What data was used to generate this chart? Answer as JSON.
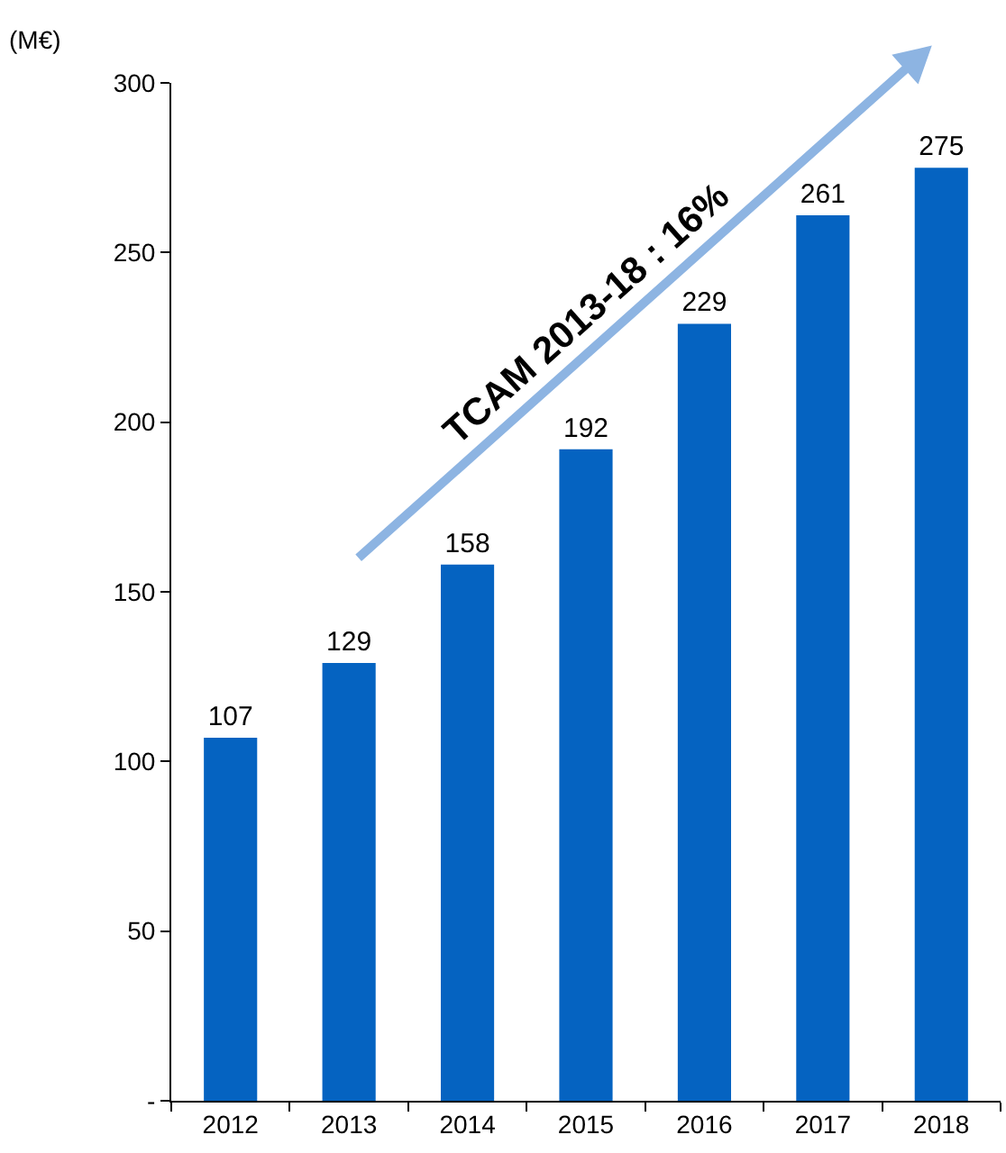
{
  "chart_data": {
    "type": "bar",
    "ylabel": "(M€)",
    "categories": [
      "2012",
      "2013",
      "2014",
      "2015",
      "2016",
      "2017",
      "2018"
    ],
    "values": [
      107,
      129,
      158,
      192,
      229,
      261,
      275
    ],
    "color": "#0563c1",
    "ylim": [
      0,
      300
    ],
    "yticks": [
      {
        "value": 0,
        "label": "-"
      },
      50,
      100,
      150,
      200,
      250,
      300
    ],
    "grid": false,
    "data_labels": true,
    "annotations": [
      "TCAM 2013-18 : 16%"
    ]
  }
}
